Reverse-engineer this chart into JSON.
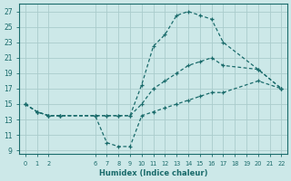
{
  "xlabel": "Humidex (Indice chaleur)",
  "bg_color": "#cce8e8",
  "line_color": "#1a6b6b",
  "grid_color": "#aacccc",
  "xlim": [
    -0.5,
    22.5
  ],
  "ylim": [
    8.5,
    28
  ],
  "xticks": [
    0,
    1,
    2,
    6,
    7,
    8,
    9,
    10,
    11,
    12,
    13,
    14,
    15,
    16,
    17,
    18,
    19,
    20,
    21,
    22
  ],
  "yticks": [
    9,
    11,
    13,
    15,
    17,
    19,
    21,
    23,
    25,
    27
  ],
  "lines": [
    {
      "x": [
        0,
        1,
        2,
        3,
        6,
        7,
        8,
        9,
        10,
        11,
        12,
        13,
        14,
        15,
        16,
        17,
        20,
        22
      ],
      "y": [
        15,
        14,
        13.5,
        13.5,
        13.5,
        13.5,
        13.5,
        13.5,
        17.5,
        22.5,
        24,
        26.5,
        27,
        26.5,
        26,
        23,
        19.5,
        17
      ]
    },
    {
      "x": [
        0,
        1,
        2,
        3,
        6,
        7,
        8,
        9,
        10,
        11,
        12,
        13,
        14,
        15,
        16,
        17,
        20,
        22
      ],
      "y": [
        15,
        14,
        13.5,
        13.5,
        13.5,
        13.5,
        13.5,
        13.5,
        15,
        17,
        18,
        19,
        20,
        20.5,
        21,
        20,
        19.5,
        17
      ]
    },
    {
      "x": [
        0,
        1,
        2,
        3,
        6,
        7,
        8,
        9,
        10,
        11,
        12,
        13,
        14,
        15,
        16,
        17,
        20,
        22
      ],
      "y": [
        15,
        14,
        13.5,
        13.5,
        13.5,
        10,
        9.5,
        9.5,
        13.5,
        14,
        14.5,
        15,
        15.5,
        16,
        16.5,
        16.5,
        18,
        17
      ]
    }
  ]
}
